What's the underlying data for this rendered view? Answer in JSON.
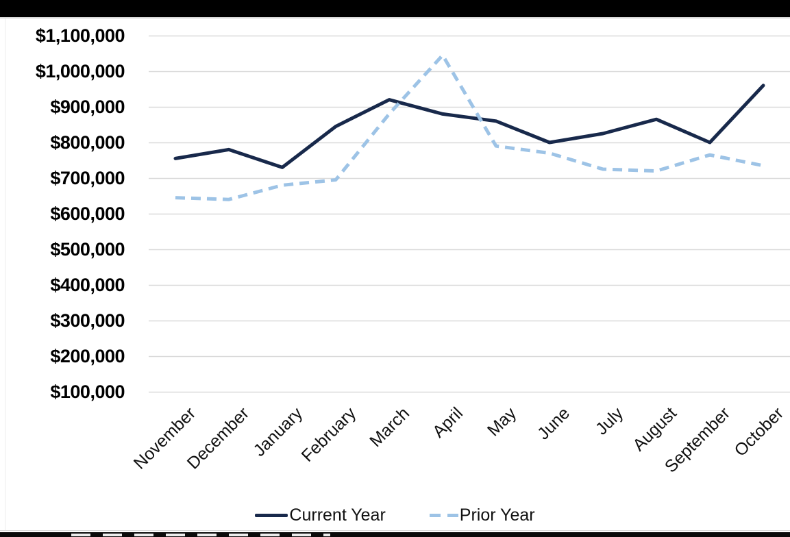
{
  "legend": {
    "items": [
      "Current Year",
      "Prior Year"
    ]
  },
  "chart_data": {
    "type": "line",
    "categories": [
      "November",
      "December",
      "January",
      "February",
      "March",
      "April",
      "May",
      "June",
      "July",
      "August",
      "September",
      "October"
    ],
    "series": [
      {
        "name": "Current Year",
        "line_style": "solid",
        "color": "#18294b",
        "values": [
          755000,
          780000,
          730000,
          845000,
          920000,
          880000,
          860000,
          800000,
          825000,
          865000,
          800000,
          960000
        ]
      },
      {
        "name": "Prior Year",
        "line_style": "dashed",
        "color": "#9dc3e6",
        "values": [
          645000,
          640000,
          680000,
          695000,
          880000,
          1045000,
          790000,
          770000,
          725000,
          720000,
          765000,
          735000
        ]
      }
    ],
    "y_axis": {
      "tick_labels": [
        "$1,100,000",
        "$1,000,000",
        "$900,000",
        "$800,000",
        "$700,000",
        "$600,000",
        "$500,000",
        "$400,000",
        "$300,000",
        "$200,000",
        "$100,000"
      ],
      "min": 100000,
      "max": 1100000,
      "tick_step": 100000
    },
    "x_axis": {
      "tick_labels": [
        "November",
        "December",
        "January",
        "February",
        "March",
        "April",
        "May",
        "June",
        "July",
        "August",
        "September",
        "October"
      ],
      "label_rotation_deg": 45
    },
    "grid": true,
    "gridline_color": "#d9d9d9",
    "legend_position": "bottom"
  }
}
